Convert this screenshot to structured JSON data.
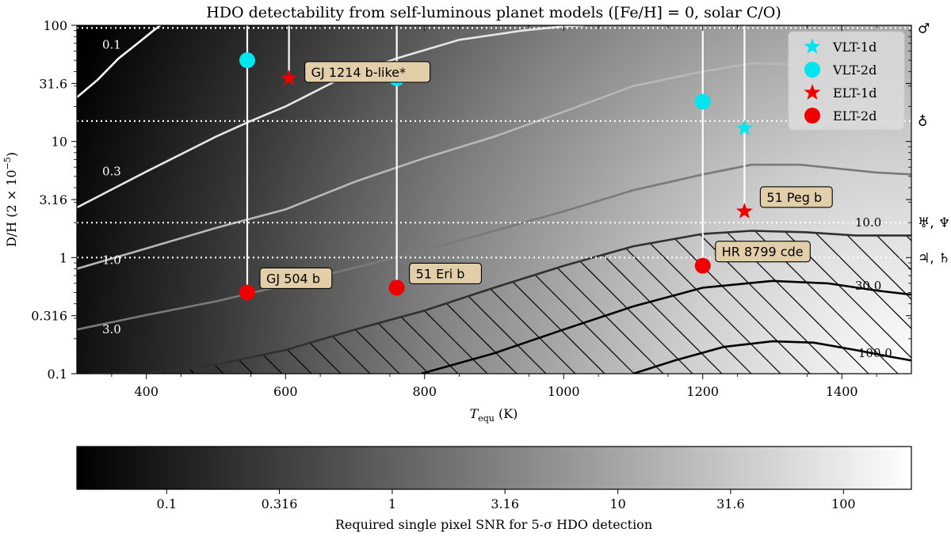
{
  "chart_data": {
    "type": "scatter",
    "title": "HDO detectability from self-luminous planet models ([Fe/H] = 0, solar C/O)",
    "xlabel": "T_equ (K)",
    "ylabel": "D/H (2 × 10⁻⁵)",
    "xlim": [
      300,
      1500
    ],
    "ylim": [
      0.1,
      100
    ],
    "yscale": "log",
    "x_ticks": [
      400,
      600,
      800,
      1000,
      1200,
      1400
    ],
    "x_tick_labels": [
      "400",
      "600",
      "800",
      "1000",
      "1200",
      "1400"
    ],
    "y_ticks": [
      0.1,
      0.316,
      1,
      3.16,
      10,
      31.6,
      100
    ],
    "y_tick_labels": [
      "0.1",
      "0.316",
      "1",
      "3.16",
      "10",
      "31.6",
      "100"
    ],
    "legend_position": "top-right",
    "series": [
      {
        "name": "VLT-1d",
        "marker": "star",
        "color": "#00e5ee",
        "points": [
          [
            1260,
            13
          ]
        ]
      },
      {
        "name": "VLT-2d",
        "marker": "circle",
        "color": "#00e5ee",
        "points": [
          [
            545,
            50
          ],
          [
            760,
            35
          ],
          [
            1200,
            22
          ]
        ]
      },
      {
        "name": "ELT-1d",
        "marker": "star",
        "color": "#ee0000",
        "points": [
          [
            605,
            35
          ],
          [
            1260,
            2.5
          ]
        ]
      },
      {
        "name": "ELT-2d",
        "marker": "circle",
        "color": "#ee0000",
        "points": [
          [
            545,
            0.5
          ],
          [
            760,
            0.55
          ],
          [
            1200,
            0.85
          ]
        ]
      }
    ],
    "drop_lines": [
      {
        "x": 545,
        "y_from": 100,
        "y_to": 0.5
      },
      {
        "x": 605,
        "y_from": 100,
        "y_to": 35
      },
      {
        "x": 760,
        "y_from": 100,
        "y_to": 0.55
      },
      {
        "x": 1200,
        "y_from": 100,
        "y_to": 0.85
      },
      {
        "x": 1260,
        "y_from": 100,
        "y_to": 2.5
      }
    ],
    "annotations": [
      {
        "text": "GJ 1214 b-like*",
        "x": 605,
        "y": 35
      },
      {
        "text": "GJ 504 b",
        "x": 545,
        "y": 0.5
      },
      {
        "text": "51 Eri b",
        "x": 760,
        "y": 0.55
      },
      {
        "text": "HR 8799 cde",
        "x": 1200,
        "y": 0.85
      },
      {
        "text": "51 Peg b",
        "x": 1260,
        "y": 2.5
      }
    ],
    "reference_lines": [
      {
        "y": 95,
        "labels": [
          "♂"
        ]
      },
      {
        "y": 15,
        "labels": [
          "♁"
        ]
      },
      {
        "y": 2.0,
        "labels": [
          "♅",
          "♆"
        ]
      },
      {
        "y": 1.0,
        "labels": [
          "♃",
          "♄"
        ]
      }
    ],
    "contours": [
      {
        "level": "0.1",
        "color": "#ffffff",
        "points": [
          [
            300,
            24
          ],
          [
            330,
            34
          ],
          [
            360,
            52
          ],
          [
            390,
            72
          ],
          [
            410,
            90
          ],
          [
            420,
            100
          ]
        ]
      },
      {
        "level": "0.3",
        "color": "#e6e6e6",
        "points": [
          [
            300,
            2.7
          ],
          [
            400,
            5.5
          ],
          [
            500,
            11
          ],
          [
            550,
            15
          ],
          [
            600,
            20
          ],
          [
            680,
            35
          ],
          [
            760,
            52
          ],
          [
            850,
            75
          ],
          [
            940,
            90
          ],
          [
            1000,
            98
          ],
          [
            1030,
            100
          ]
        ]
      },
      {
        "level": "1.0",
        "color": "#b8b8b8",
        "points": [
          [
            300,
            0.8
          ],
          [
            400,
            1.2
          ],
          [
            500,
            1.8
          ],
          [
            600,
            2.6
          ],
          [
            700,
            4.5
          ],
          [
            800,
            7.2
          ],
          [
            900,
            11
          ],
          [
            1000,
            18
          ],
          [
            1100,
            30
          ],
          [
            1200,
            40
          ],
          [
            1270,
            47
          ],
          [
            1340,
            46
          ],
          [
            1400,
            40
          ],
          [
            1450,
            36
          ],
          [
            1500,
            35
          ]
        ]
      },
      {
        "level": "3.0",
        "color": "#7a7a7a",
        "points": [
          [
            300,
            0.24
          ],
          [
            400,
            0.32
          ],
          [
            500,
            0.42
          ],
          [
            600,
            0.58
          ],
          [
            700,
            0.82
          ],
          [
            800,
            1.15
          ],
          [
            900,
            1.7
          ],
          [
            1000,
            2.5
          ],
          [
            1100,
            3.8
          ],
          [
            1200,
            5.2
          ],
          [
            1270,
            6.3
          ],
          [
            1340,
            6.3
          ],
          [
            1400,
            5.8
          ],
          [
            1450,
            5.4
          ],
          [
            1500,
            5.2
          ]
        ]
      },
      {
        "level": "10.0",
        "color": "#303030",
        "points": [
          [
            320,
            0.1
          ],
          [
            400,
            0.1
          ],
          [
            500,
            0.12
          ],
          [
            600,
            0.16
          ],
          [
            700,
            0.24
          ],
          [
            800,
            0.35
          ],
          [
            900,
            0.55
          ],
          [
            1000,
            0.85
          ],
          [
            1100,
            1.25
          ],
          [
            1200,
            1.6
          ],
          [
            1270,
            1.7
          ],
          [
            1350,
            1.65
          ],
          [
            1420,
            1.55
          ],
          [
            1500,
            1.55
          ]
        ]
      },
      {
        "level": "30.0",
        "color": "#000000",
        "points": [
          [
            795,
            0.1
          ],
          [
            900,
            0.15
          ],
          [
            1000,
            0.24
          ],
          [
            1100,
            0.38
          ],
          [
            1200,
            0.55
          ],
          [
            1300,
            0.63
          ],
          [
            1380,
            0.6
          ],
          [
            1450,
            0.52
          ],
          [
            1500,
            0.48
          ]
        ]
      },
      {
        "level": "100.0",
        "color": "#000000",
        "points": [
          [
            1100,
            0.1
          ],
          [
            1160,
            0.13
          ],
          [
            1230,
            0.17
          ],
          [
            1300,
            0.19
          ],
          [
            1360,
            0.185
          ],
          [
            1420,
            0.16
          ],
          [
            1470,
            0.14
          ],
          [
            1500,
            0.13
          ]
        ]
      }
    ],
    "contour_labels": [
      {
        "text": "0.1",
        "x": 350,
        "y": 68,
        "color": "#ffffff"
      },
      {
        "text": "0.3",
        "x": 350,
        "y": 5.5,
        "color": "#ffffff"
      },
      {
        "text": "1.0",
        "x": 350,
        "y": 0.95,
        "color": "#ffffff"
      },
      {
        "text": "3.0",
        "x": 350,
        "y": 0.24,
        "color": "#ffffff"
      },
      {
        "text": "10.0",
        "x": 1438,
        "y": 2.0,
        "color": "#000000"
      },
      {
        "text": "30.0",
        "x": 1438,
        "y": 0.57,
        "color": "#000000"
      },
      {
        "text": "100.0",
        "x": 1448,
        "y": 0.15,
        "color": "#000000"
      }
    ],
    "colorbar": {
      "label": "Required single pixel SNR for 5-σ HDO detection",
      "scale": "log",
      "range": [
        0.04,
        200
      ],
      "ticks": [
        0.1,
        0.316,
        1,
        3.16,
        10,
        31.6,
        100
      ],
      "tick_labels": [
        "0.1",
        "0.316",
        "1",
        "3.16",
        "10",
        "31.6",
        "100"
      ],
      "colormap": "gray"
    }
  }
}
